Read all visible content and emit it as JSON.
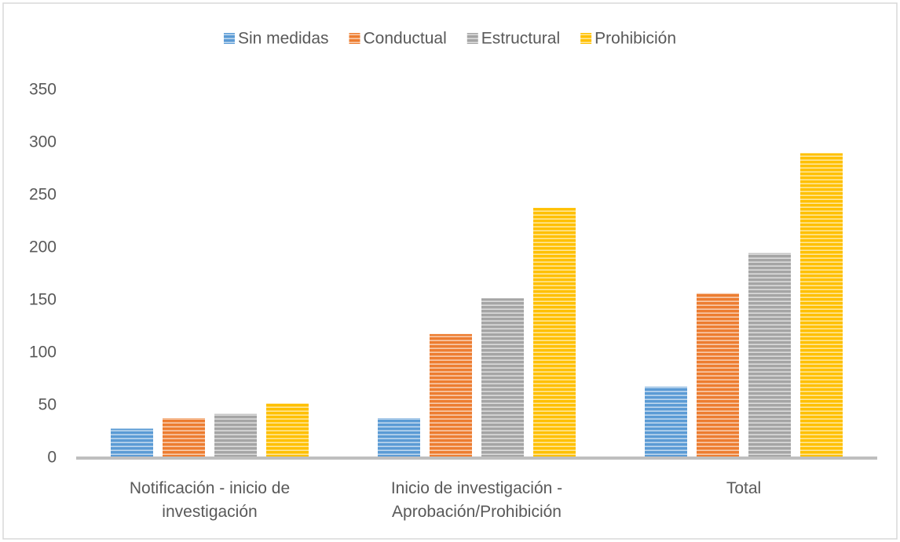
{
  "chart_data": {
    "type": "bar",
    "categories": [
      "Notificación - inicio de investigación",
      "Inicio de investigación - Aprobación/Prohibición",
      "Total"
    ],
    "series": [
      {
        "name": "Sin medidas",
        "color": "#5b9bd5",
        "values": [
          28,
          38,
          68
        ]
      },
      {
        "name": "Conductual",
        "color": "#ed7d31",
        "values": [
          38,
          118,
          157
        ]
      },
      {
        "name": "Estructural",
        "color": "#a5a5a5",
        "values": [
          42,
          152,
          195
        ]
      },
      {
        "name": "Prohibición",
        "color": "#ffc000",
        "values": [
          52,
          238,
          290
        ]
      }
    ],
    "ylim": [
      0,
      350
    ],
    "yticks": [
      0,
      50,
      100,
      150,
      200,
      250,
      300,
      350
    ],
    "grid": false,
    "legend": "top"
  }
}
